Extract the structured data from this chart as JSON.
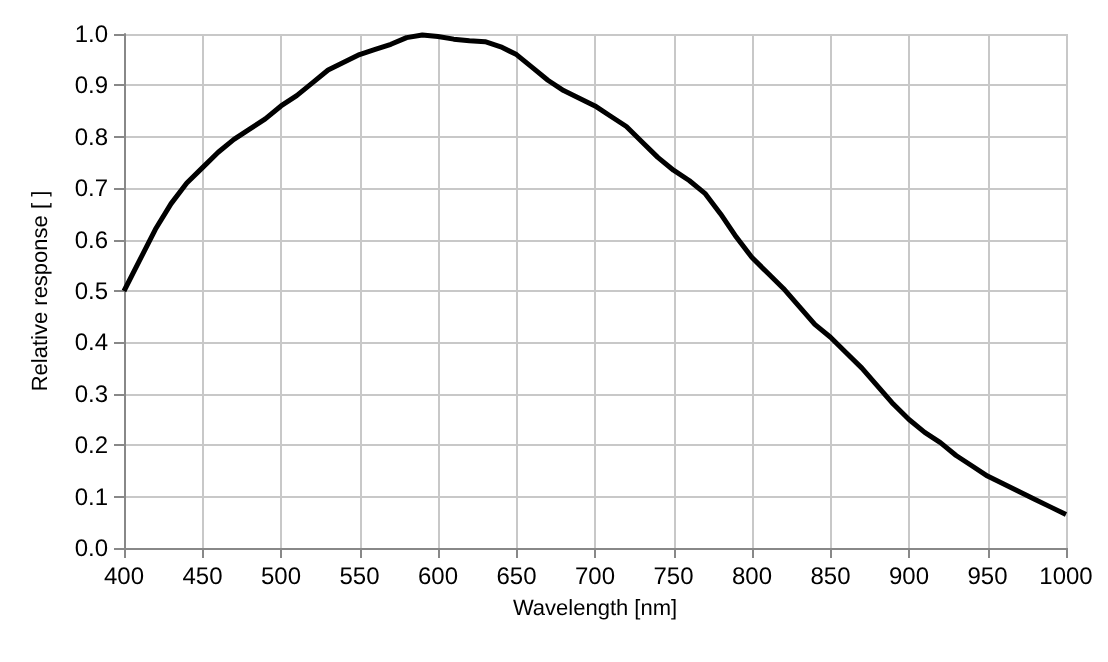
{
  "chart_data": {
    "type": "line",
    "xlabel": "Wavelength [nm]",
    "ylabel": "Relative response [ ]",
    "x": [
      400,
      410,
      420,
      430,
      440,
      450,
      460,
      470,
      480,
      490,
      500,
      510,
      520,
      530,
      540,
      550,
      560,
      570,
      580,
      590,
      600,
      610,
      620,
      630,
      640,
      650,
      660,
      670,
      680,
      690,
      700,
      710,
      720,
      730,
      740,
      750,
      760,
      770,
      780,
      790,
      800,
      810,
      820,
      830,
      840,
      850,
      860,
      870,
      880,
      890,
      900,
      910,
      920,
      930,
      940,
      950,
      960,
      970,
      980,
      990,
      1000
    ],
    "series": [
      {
        "color": "#000000",
        "values": [
          0.5,
          0.56,
          0.62,
          0.67,
          0.71,
          0.74,
          0.77,
          0.795,
          0.815,
          0.835,
          0.86,
          0.88,
          0.905,
          0.93,
          0.945,
          0.96,
          0.97,
          0.98,
          0.993,
          0.998,
          0.995,
          0.99,
          0.987,
          0.985,
          0.975,
          0.96,
          0.935,
          0.91,
          0.89,
          0.875,
          0.86,
          0.84,
          0.82,
          0.79,
          0.76,
          0.735,
          0.715,
          0.69,
          0.65,
          0.605,
          0.565,
          0.535,
          0.505,
          0.47,
          0.435,
          0.41,
          0.38,
          0.35,
          0.315,
          0.28,
          0.25,
          0.225,
          0.205,
          0.18,
          0.16,
          0.14,
          0.125,
          0.11,
          0.095,
          0.08,
          0.065
        ]
      }
    ],
    "xlim": [
      400,
      1000
    ],
    "xticks": [
      400,
      450,
      500,
      550,
      600,
      650,
      700,
      750,
      800,
      850,
      900,
      950,
      1000
    ],
    "ylim": [
      0,
      1
    ],
    "yticks": [
      {
        "value": 0,
        "label": "0.0"
      },
      {
        "value": 0.1,
        "label": "0.1"
      },
      {
        "value": 0.2,
        "label": "0.2"
      },
      {
        "value": 0.3,
        "label": "0.3"
      },
      {
        "value": 0.4,
        "label": "0.4"
      },
      {
        "value": 0.5,
        "label": "0.5"
      },
      {
        "value": 0.6,
        "label": "0.6"
      },
      {
        "value": 0.7,
        "label": "0.7"
      },
      {
        "value": 0.8,
        "label": "0.8"
      },
      {
        "value": 0.9,
        "label": "0.9"
      },
      {
        "value": 1,
        "label": "1.0"
      }
    ],
    "grid": true,
    "marker": "none",
    "line_style": "solid"
  }
}
